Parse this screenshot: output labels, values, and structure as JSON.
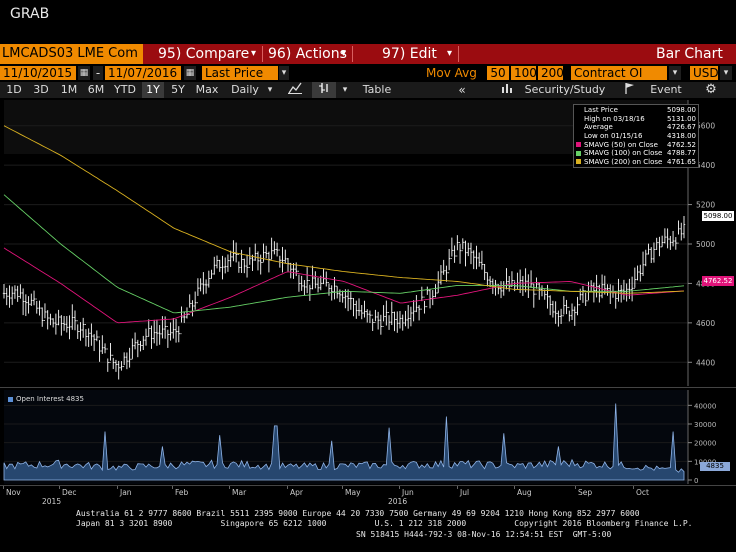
{
  "app": {
    "title": "GRAB"
  },
  "toolbar": {
    "ticker": "LMCADS03 LME Com",
    "compare": "95) Compare",
    "actions": "96) Actions",
    "edit": "97) Edit",
    "chart_type": "Bar Chart"
  },
  "settings": {
    "start_date": "11/10/2015",
    "end_date": "11/07/2016",
    "field": "Last Price",
    "mov_avg_label": "Mov Avg",
    "mov_avg_periods": [
      "50",
      "100",
      "200"
    ],
    "lower_field": "Contract OI",
    "currency": "USD"
  },
  "ranges": {
    "items": [
      "1D",
      "3D",
      "1M",
      "6M",
      "YTD",
      "1Y",
      "5Y",
      "Max"
    ],
    "selected": "1Y",
    "frequency": "Daily",
    "table_label": "Table",
    "security_study": "Security/Study",
    "event": "Event"
  },
  "legend": {
    "rows": [
      {
        "label": "Last Price",
        "value": "5098.00",
        "color": "#ffffff"
      },
      {
        "label": "High on 03/18/16",
        "value": "5131.00",
        "color": "#ffffff"
      },
      {
        "label": "Average",
        "value": "4726.67",
        "color": "#ffffff"
      },
      {
        "label": "Low on 01/15/16",
        "value": "4318.00",
        "color": "#ffffff"
      },
      {
        "label": "SMAVG (50) on Close",
        "value": "4762.52",
        "color": "#e0147a"
      },
      {
        "label": "SMAVG (100) on Close",
        "value": "4788.77",
        "color": "#66d066"
      },
      {
        "label": "SMAVG (200) on Close",
        "value": "4761.65",
        "color": "#d8b020"
      }
    ]
  },
  "price_axis": {
    "ticks": [
      "5600",
      "5400",
      "5200",
      "5000",
      "4800",
      "4600",
      "4400"
    ],
    "last_tag": "5098.00",
    "ma_tag": "4762.52"
  },
  "oi_panel": {
    "label": "Open Interest 4835",
    "ticks": [
      "40000",
      "30000",
      "20000",
      "10000",
      "0"
    ],
    "last_tag": "4835"
  },
  "x_axis": {
    "months": [
      "Nov",
      "Dec",
      "Jan",
      "Feb",
      "Mar",
      "Apr",
      "May",
      "Jun",
      "Jul",
      "Aug",
      "Sep",
      "Oct"
    ],
    "years": [
      "2015",
      "2016"
    ]
  },
  "footer": {
    "line1": "Australia 61 2 9777 8600 Brazil 5511 2395 9000 Europe 44 20 7330 7500 Germany 49 69 9204 1210 Hong Kong 852 2977 6000",
    "line2": "Japan 81 3 3201 8900          Singapore 65 6212 1000          U.S. 1 212 318 2000          Copyright 2016 Bloomberg Finance L.P.",
    "line3": "SN 518415 H444-792-3 08-Nov-16 12:54:51 EST  GMT-5:00"
  },
  "chart_data": [
    {
      "type": "line",
      "title": "",
      "series": [
        {
          "name": "Last Price",
          "x": [
            "Nov",
            "Dec",
            "Jan",
            "Feb",
            "Mar",
            "Apr",
            "May",
            "Jun",
            "Jul",
            "Aug",
            "Sep",
            "Oct",
            "Nov"
          ],
          "values": [
            4750,
            4620,
            4420,
            4580,
            4950,
            4900,
            4720,
            4580,
            4960,
            4780,
            4680,
            4800,
            5098
          ]
        },
        {
          "name": "SMAVG (50) on Close",
          "x": [
            "Nov",
            "Dec",
            "Jan",
            "Feb",
            "Mar",
            "Apr",
            "May",
            "Jun",
            "Jul",
            "Aug",
            "Sep",
            "Oct",
            "Nov"
          ],
          "values": [
            4980,
            4800,
            4600,
            4620,
            4730,
            4860,
            4810,
            4700,
            4740,
            4800,
            4810,
            4740,
            4762
          ]
        },
        {
          "name": "SMAVG (100) on Close",
          "x": [
            "Nov",
            "Dec",
            "Jan",
            "Feb",
            "Mar",
            "Apr",
            "May",
            "Jun",
            "Jul",
            "Aug",
            "Sep",
            "Oct",
            "Nov"
          ],
          "values": [
            5250,
            5000,
            4780,
            4650,
            4680,
            4730,
            4760,
            4750,
            4790,
            4790,
            4760,
            4760,
            4788
          ]
        },
        {
          "name": "SMAVG (200) on Close",
          "x": [
            "Nov",
            "Dec",
            "Jan",
            "Feb",
            "Mar",
            "Apr",
            "May",
            "Jun",
            "Jul",
            "Aug",
            "Sep",
            "Oct",
            "Nov"
          ],
          "values": [
            5600,
            5450,
            5270,
            5080,
            4960,
            4900,
            4860,
            4830,
            4810,
            4770,
            4760,
            4750,
            4761
          ]
        }
      ],
      "ylim": [
        4300,
        5700
      ]
    },
    {
      "type": "area",
      "title": "",
      "series": [
        {
          "name": "Open Interest",
          "x": [
            "Nov",
            "Dec",
            "Jan",
            "Feb",
            "Mar",
            "Apr",
            "May",
            "Jun",
            "Jul",
            "Aug",
            "Sep",
            "Oct",
            "Nov"
          ],
          "values": [
            8000,
            9000,
            7000,
            8500,
            9000,
            7500,
            8000,
            8500,
            9000,
            8000,
            9500,
            8000,
            4835
          ]
        }
      ],
      "spikes": [
        {
          "x": "Dec",
          "value": 26000
        },
        {
          "x": "Jan",
          "value": 18000
        },
        {
          "x": "Feb",
          "value": 24000
        },
        {
          "x": "Mar",
          "value": 29000
        },
        {
          "x": "Apr",
          "value": 21000
        },
        {
          "x": "May",
          "value": 28000
        },
        {
          "x": "Jun",
          "value": 34000
        },
        {
          "x": "Jul",
          "value": 25000
        },
        {
          "x": "Aug",
          "value": 18000
        },
        {
          "x": "Sep",
          "value": 41000
        },
        {
          "x": "Oct",
          "value": 26000
        }
      ],
      "ylim": [
        0,
        45000
      ]
    }
  ]
}
